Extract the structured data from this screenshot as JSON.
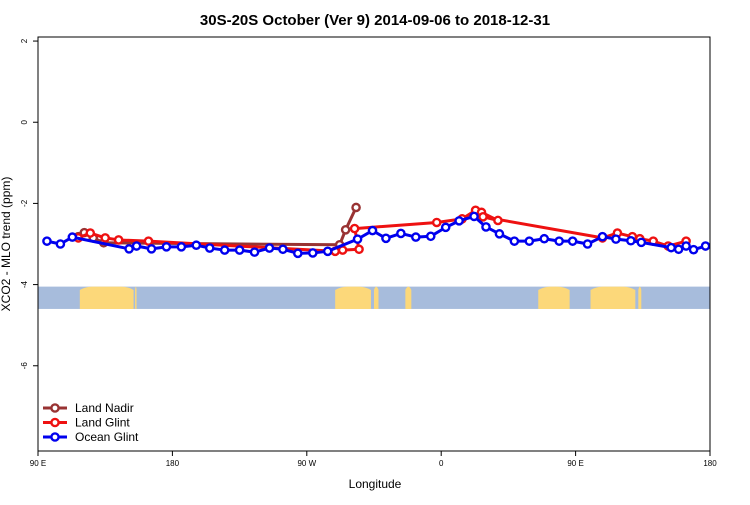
{
  "chart_data": {
    "type": "line",
    "title": "30S-20S October (Ver 9)   2014-09-06 to 2018-12-31",
    "xlabel": "Longitude",
    "ylabel": "XCO2 - MLO trend (ppm)",
    "xlim": [
      90,
      540
    ],
    "ylim": [
      -8.1,
      2.1
    ],
    "x_ticks": [
      {
        "value": 90,
        "label": "90 E"
      },
      {
        "value": 180,
        "label": "180"
      },
      {
        "value": 270,
        "label": "90 W"
      },
      {
        "value": 360,
        "label": "0"
      },
      {
        "value": 450,
        "label": "90 E"
      },
      {
        "value": 540,
        "label": "180"
      }
    ],
    "y_ticks": [
      {
        "value": 2,
        "label": "2"
      },
      {
        "value": 0,
        "label": "0"
      },
      {
        "value": -2,
        "label": "-2"
      },
      {
        "value": -4,
        "label": "-4"
      },
      {
        "value": -6,
        "label": "-6"
      }
    ],
    "land_band": {
      "y_range": [
        -4.6,
        -4.05
      ],
      "ocean_color": "#a7bcdc",
      "land_color": "#fcd87a",
      "land_segments": [
        [
          118,
          154
        ],
        [
          155,
          156
        ],
        [
          289,
          313
        ],
        [
          315,
          318
        ],
        [
          425,
          446
        ],
        [
          436,
          437
        ],
        [
          336,
          340
        ],
        [
          460,
          490
        ],
        [
          492,
          494
        ]
      ]
    },
    "legend_position": "bottom-left",
    "series": [
      {
        "name": "Land Nadir",
        "color": "#993333",
        "x": [
          117,
          121,
          127,
          134,
          292,
          296,
          303
        ],
        "y": [
          -2.82,
          -2.72,
          -2.85,
          -2.97,
          -3.02,
          -2.65,
          -2.1
        ]
      },
      {
        "name": "Land Glint",
        "color": "#ee1111",
        "x": [
          117,
          125,
          135,
          144,
          164,
          289,
          294,
          305,
          302,
          357,
          374,
          383,
          387,
          398,
          388,
          468,
          478,
          488,
          493,
          502,
          512,
          524
        ],
        "y": [
          -2.85,
          -2.73,
          -2.85,
          -2.9,
          -2.93,
          -3.18,
          -3.15,
          -3.13,
          -2.62,
          -2.47,
          -2.38,
          -2.17,
          -2.22,
          -2.42,
          -2.33,
          -2.85,
          -2.73,
          -2.82,
          -2.87,
          -2.93,
          -3.05,
          -2.93
        ]
      },
      {
        "name": "Ocean Glint",
        "color": "#0000ee",
        "x": [
          96,
          105,
          113,
          151,
          156,
          166,
          176,
          186,
          196,
          205,
          215,
          225,
          235,
          245,
          254,
          264,
          274,
          284,
          304,
          314,
          323,
          333,
          343,
          353,
          363,
          372,
          382,
          390,
          399,
          409,
          419,
          429,
          439,
          448,
          458,
          468,
          477,
          487,
          494,
          514,
          519,
          524,
          529,
          537
        ],
        "y": [
          -2.93,
          -3.0,
          -2.83,
          -3.12,
          -3.05,
          -3.12,
          -3.07,
          -3.07,
          -3.03,
          -3.1,
          -3.15,
          -3.15,
          -3.2,
          -3.1,
          -3.13,
          -3.23,
          -3.22,
          -3.18,
          -2.88,
          -2.67,
          -2.86,
          -2.74,
          -2.83,
          -2.81,
          -2.59,
          -2.43,
          -2.32,
          -2.58,
          -2.75,
          -2.93,
          -2.93,
          -2.87,
          -2.93,
          -2.93,
          -3.0,
          -2.82,
          -2.88,
          -2.92,
          -2.96,
          -3.09,
          -3.13,
          -3.05,
          -3.14,
          -3.05
        ]
      }
    ]
  }
}
